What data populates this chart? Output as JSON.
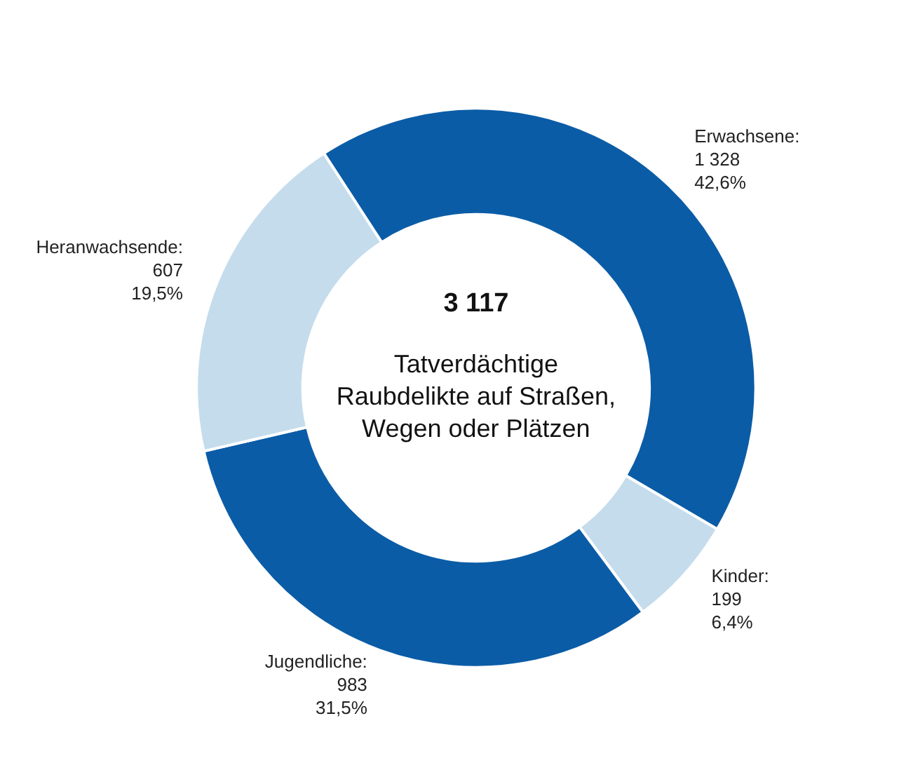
{
  "chart_data": {
    "type": "donut",
    "categories": [
      "Erwachsene",
      "Kinder",
      "Jugendliche",
      "Heranwachsende"
    ],
    "values": [
      1328,
      199,
      983,
      607
    ],
    "colors": [
      "#0b5ca6",
      "#c5dcec",
      "#0b5ca6",
      "#c5dcec"
    ],
    "value_labels": [
      ":\n1 328\n42,6%",
      ":\n199\n6,4%",
      ":\n983\n31,5%",
      ":\n607\n19,5%"
    ],
    "annotations": [
      "3 117",
      "Tatverdächtige\nRaubdelikte auf Straßen,\nWegen oder Plätzen"
    ]
  }
}
